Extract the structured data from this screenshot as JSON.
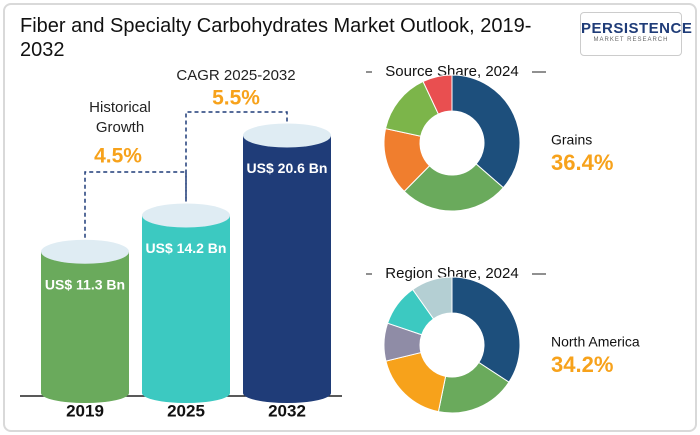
{
  "title": "Fiber and Specialty Carbohydrates Market Outlook, 2019-2032",
  "logo": {
    "name": "PERSISTENCE",
    "tagline": "MARKET RESEARCH"
  },
  "chart_data": [
    {
      "type": "bar",
      "categories": [
        "2019",
        "2025",
        "2032"
      ],
      "values": [
        11.3,
        14.2,
        20.6
      ],
      "value_labels": [
        "US$ 11.3 Bn",
        "US$ 14.2 Bn",
        "US$ 20.6 Bn"
      ],
      "colors": [
        "#6aaa5c",
        "#3cc9c1",
        "#1f3c78"
      ],
      "annotations": [
        {
          "text": "Historical Growth",
          "value": "4.5%"
        },
        {
          "text": "CAGR 2025-2032",
          "value": "5.5%"
        }
      ]
    },
    {
      "type": "donut",
      "title": "Source Share, 2024",
      "categories": [
        "Grains",
        null,
        null,
        null,
        null
      ],
      "values": [
        36.4,
        26,
        16,
        14.6,
        7
      ],
      "value_labels": [
        "36.4%",
        null,
        null,
        null,
        null
      ],
      "colors": [
        "#1d4f7c",
        "#6aaa5c",
        "#f07e2e",
        "#7cb54a",
        "#e94f50"
      ]
    },
    {
      "type": "donut",
      "title": "Region Share, 2024",
      "categories": [
        "North America",
        null,
        null,
        null,
        null,
        null
      ],
      "values": [
        34.2,
        19,
        18,
        9,
        10,
        9.8
      ],
      "value_labels": [
        "34.2%",
        null,
        null,
        null,
        null,
        null
      ],
      "colors": [
        "#1d4f7c",
        "#6aaa5c",
        "#f7a21b",
        "#8f8ca6",
        "#3cc9c1",
        "#b4cfd3"
      ]
    }
  ]
}
